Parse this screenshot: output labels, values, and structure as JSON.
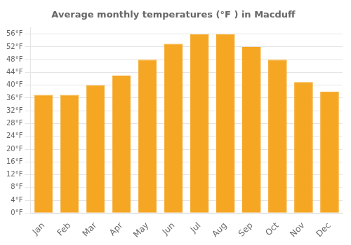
{
  "chart_data": {
    "type": "bar",
    "title": "Average monthly temperatures (°F ) in Macduff",
    "categories": [
      "Jan",
      "Feb",
      "Mar",
      "Apr",
      "May",
      "Jun",
      "Jul",
      "Aug",
      "Sep",
      "Oct",
      "Nov",
      "Dec"
    ],
    "values": [
      37,
      37,
      40,
      43,
      48,
      53,
      56,
      56,
      52,
      48,
      41,
      38
    ],
    "color": "#F5A623",
    "ylim": [
      0,
      58
    ],
    "yticks": [
      {
        "value": 0,
        "label": "0°F"
      },
      {
        "value": 4,
        "label": "4°F"
      },
      {
        "value": 8,
        "label": "8°F"
      },
      {
        "value": 12,
        "label": "12°F"
      },
      {
        "value": 16,
        "label": "16°F"
      },
      {
        "value": 20,
        "label": "20°F"
      },
      {
        "value": 24,
        "label": "24°F"
      },
      {
        "value": 28,
        "label": "28°F"
      },
      {
        "value": 32,
        "label": "32°F"
      },
      {
        "value": 36,
        "label": "36°F"
      },
      {
        "value": 40,
        "label": "40°F"
      },
      {
        "value": 44,
        "label": "44°F"
      },
      {
        "value": 48,
        "label": "48°F"
      },
      {
        "value": 52,
        "label": "52°F"
      },
      {
        "value": 56,
        "label": "56°F"
      }
    ],
    "grid": true
  }
}
